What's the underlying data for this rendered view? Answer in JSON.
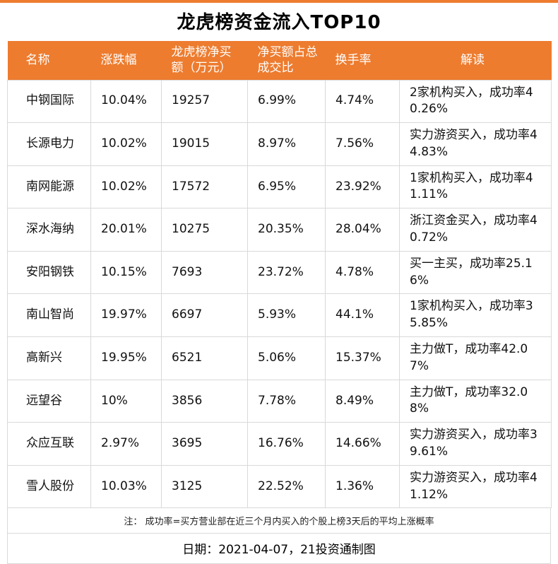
{
  "colors": {
    "accent": "#ED7C2F",
    "grid": "#d9d9d9",
    "header_text": "#ffffff"
  },
  "chart_data": {
    "type": "table",
    "title": "龙虎榜资金流入TOP10",
    "columns": [
      "名称",
      "涨跌幅",
      "龙虎榜净买额（万元）",
      "净买额占总成交比",
      "换手率",
      "解读"
    ],
    "rows": [
      [
        "中钢国际",
        "10.04%",
        "19257",
        "6.99%",
        "4.74%",
        "2家机构买入，成功率40.26%"
      ],
      [
        "长源电力",
        "10.02%",
        "19015",
        "8.97%",
        "7.56%",
        "实力游资买入，成功率44.83%"
      ],
      [
        "南网能源",
        "10.02%",
        "17572",
        "6.95%",
        "23.92%",
        "1家机构买入，成功率41.11%"
      ],
      [
        "深水海纳",
        "20.01%",
        "10275",
        "20.35%",
        "28.04%",
        "浙江资金买入，成功率40.72%"
      ],
      [
        "安阳钢铁",
        "10.15%",
        "7693",
        "23.72%",
        "4.78%",
        "买一主买，成功率25.16%"
      ],
      [
        "南山智尚",
        "19.97%",
        "6697",
        "5.93%",
        "44.1%",
        "1家机构买入，成功率35.85%"
      ],
      [
        "高新兴",
        "19.95%",
        "6521",
        "5.06%",
        "15.37%",
        "主力做T，成功率42.07%"
      ],
      [
        "远望谷",
        "10%",
        "3856",
        "7.78%",
        "8.49%",
        "主力做T，成功率32.08%"
      ],
      [
        "众应互联",
        "2.97%",
        "3695",
        "16.76%",
        "14.66%",
        "实力游资买入，成功率39.61%"
      ],
      [
        "雪人股份",
        "10.03%",
        "3125",
        "22.52%",
        "1.36%",
        "实力游资买入，成功率41.12%"
      ]
    ]
  },
  "footer": {
    "note": "注： 成功率=买方营业部在近三个月内买入的个股上榜3天后的平均上涨概率",
    "date_line": "日期：2021-04-07，21投资通制图"
  }
}
